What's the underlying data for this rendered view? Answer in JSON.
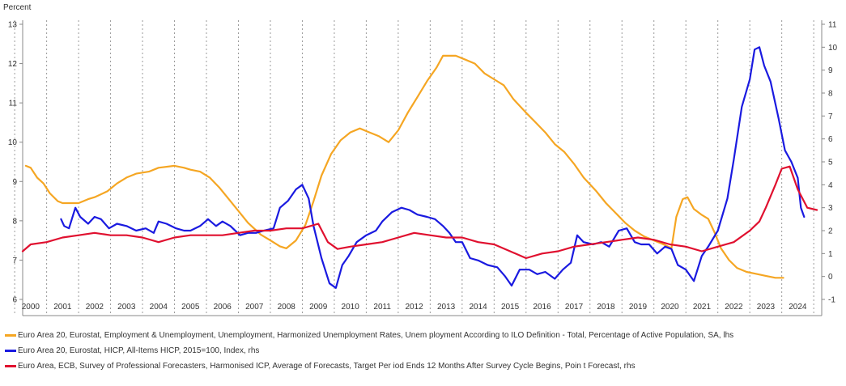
{
  "chart_data": {
    "type": "line",
    "y_left_title": "Percent",
    "y_left_range": [
      6,
      13
    ],
    "y_left_ticks": [
      "6",
      "7",
      "8",
      "9",
      "10",
      "11",
      "12",
      "13"
    ],
    "y_right_range": [
      -1,
      11
    ],
    "y_right_ticks": [
      "-1",
      "0",
      "1",
      "2",
      "3",
      "4",
      "5",
      "6",
      "7",
      "8",
      "9",
      "10",
      "11"
    ],
    "x_range": [
      1999.75,
      2024.75
    ],
    "x_tick_labels": [
      "2000",
      "2001",
      "2002",
      "2003",
      "2004",
      "2005",
      "2006",
      "2007",
      "2008",
      "2009",
      "2010",
      "2011",
      "2012",
      "2013",
      "2014",
      "2015",
      "2016",
      "2017",
      "2018",
      "2019",
      "2020",
      "2021",
      "2022",
      "2023",
      "2024"
    ],
    "grid": "vertical dotted",
    "legend_position": "bottom",
    "series": [
      {
        "name": "Euro Area 20, Eurostat, Employment & Unemployment, Unemployment, Harmonized Unemployment Rates, Unem   ployment According to ILO  Definition - Total, Percentage of Active Population, SA, lhs",
        "axis": "left",
        "color": "#F5A623",
        "points": [
          [
            1999.85,
            9.4
          ],
          [
            2000.0,
            9.35
          ],
          [
            2000.2,
            9.1
          ],
          [
            2000.4,
            8.95
          ],
          [
            2000.6,
            8.7
          ],
          [
            2000.85,
            8.5
          ],
          [
            2001.0,
            8.45
          ],
          [
            2001.5,
            8.45
          ],
          [
            2001.8,
            8.55
          ],
          [
            2002.0,
            8.6
          ],
          [
            2002.4,
            8.75
          ],
          [
            2002.7,
            8.95
          ],
          [
            2003.0,
            9.1
          ],
          [
            2003.3,
            9.2
          ],
          [
            2003.7,
            9.25
          ],
          [
            2004.0,
            9.35
          ],
          [
            2004.5,
            9.4
          ],
          [
            2004.8,
            9.35
          ],
          [
            2005.0,
            9.3
          ],
          [
            2005.3,
            9.25
          ],
          [
            2005.6,
            9.1
          ],
          [
            2005.9,
            8.85
          ],
          [
            2006.2,
            8.55
          ],
          [
            2006.5,
            8.25
          ],
          [
            2006.8,
            7.95
          ],
          [
            2007.2,
            7.65
          ],
          [
            2007.5,
            7.5
          ],
          [
            2007.8,
            7.35
          ],
          [
            2008.0,
            7.3
          ],
          [
            2008.3,
            7.5
          ],
          [
            2008.6,
            7.9
          ],
          [
            2008.85,
            8.5
          ],
          [
            2009.1,
            9.15
          ],
          [
            2009.4,
            9.7
          ],
          [
            2009.7,
            10.05
          ],
          [
            2010.0,
            10.25
          ],
          [
            2010.3,
            10.35
          ],
          [
            2010.6,
            10.25
          ],
          [
            2010.9,
            10.15
          ],
          [
            2011.2,
            10.0
          ],
          [
            2011.5,
            10.3
          ],
          [
            2011.8,
            10.75
          ],
          [
            2012.1,
            11.15
          ],
          [
            2012.4,
            11.55
          ],
          [
            2012.7,
            11.9
          ],
          [
            2012.9,
            12.2
          ],
          [
            2013.3,
            12.2
          ],
          [
            2013.6,
            12.1
          ],
          [
            2013.9,
            12.0
          ],
          [
            2014.2,
            11.75
          ],
          [
            2014.5,
            11.6
          ],
          [
            2014.8,
            11.45
          ],
          [
            2015.1,
            11.1
          ],
          [
            2015.5,
            10.75
          ],
          [
            2015.8,
            10.5
          ],
          [
            2016.1,
            10.25
          ],
          [
            2016.4,
            9.95
          ],
          [
            2016.7,
            9.75
          ],
          [
            2017.0,
            9.45
          ],
          [
            2017.3,
            9.1
          ],
          [
            2017.7,
            8.75
          ],
          [
            2018.0,
            8.45
          ],
          [
            2018.3,
            8.2
          ],
          [
            2018.6,
            7.95
          ],
          [
            2018.9,
            7.75
          ],
          [
            2019.2,
            7.6
          ],
          [
            2019.5,
            7.5
          ],
          [
            2019.8,
            7.4
          ],
          [
            2020.05,
            7.3
          ],
          [
            2020.2,
            8.1
          ],
          [
            2020.4,
            8.55
          ],
          [
            2020.55,
            8.6
          ],
          [
            2020.75,
            8.3
          ],
          [
            2021.0,
            8.15
          ],
          [
            2021.2,
            8.05
          ],
          [
            2021.4,
            7.7
          ],
          [
            2021.6,
            7.3
          ],
          [
            2021.85,
            7.0
          ],
          [
            2022.1,
            6.8
          ],
          [
            2022.4,
            6.7
          ],
          [
            2022.7,
            6.65
          ],
          [
            2023.0,
            6.6
          ],
          [
            2023.3,
            6.55
          ],
          [
            2023.55,
            6.55
          ]
        ]
      },
      {
        "name": "Euro Area 20, Eurostat, HICP, All-Items HICP, 2015=100, Index, rhs",
        "axis": "right",
        "color": "#1A1AE0",
        "points": [
          [
            2000.95,
            2.5
          ],
          [
            2001.05,
            2.2
          ],
          [
            2001.2,
            2.1
          ],
          [
            2001.4,
            3.0
          ],
          [
            2001.55,
            2.6
          ],
          [
            2001.8,
            2.3
          ],
          [
            2002.0,
            2.6
          ],
          [
            2002.2,
            2.5
          ],
          [
            2002.45,
            2.1
          ],
          [
            2002.7,
            2.3
          ],
          [
            2003.0,
            2.2
          ],
          [
            2003.3,
            2.0
          ],
          [
            2003.6,
            2.1
          ],
          [
            2003.85,
            1.9
          ],
          [
            2004.0,
            2.4
          ],
          [
            2004.25,
            2.3
          ],
          [
            2004.55,
            2.1
          ],
          [
            2004.8,
            2.0
          ],
          [
            2005.0,
            2.0
          ],
          [
            2005.3,
            2.2
          ],
          [
            2005.55,
            2.5
          ],
          [
            2005.8,
            2.2
          ],
          [
            2006.0,
            2.4
          ],
          [
            2006.25,
            2.2
          ],
          [
            2006.55,
            1.8
          ],
          [
            2006.8,
            1.9
          ],
          [
            2007.05,
            1.9
          ],
          [
            2007.3,
            2.0
          ],
          [
            2007.6,
            2.1
          ],
          [
            2007.8,
            3.0
          ],
          [
            2008.05,
            3.3
          ],
          [
            2008.3,
            3.8
          ],
          [
            2008.5,
            4.0
          ],
          [
            2008.7,
            3.4
          ],
          [
            2008.85,
            2.2
          ],
          [
            2009.1,
            0.8
          ],
          [
            2009.35,
            -0.3
          ],
          [
            2009.55,
            -0.5
          ],
          [
            2009.75,
            0.5
          ],
          [
            2009.95,
            0.9
          ],
          [
            2010.2,
            1.5
          ],
          [
            2010.5,
            1.8
          ],
          [
            2010.8,
            2.0
          ],
          [
            2011.0,
            2.4
          ],
          [
            2011.3,
            2.8
          ],
          [
            2011.6,
            3.0
          ],
          [
            2011.85,
            2.9
          ],
          [
            2012.1,
            2.7
          ],
          [
            2012.4,
            2.6
          ],
          [
            2012.65,
            2.5
          ],
          [
            2012.9,
            2.2
          ],
          [
            2013.1,
            1.9
          ],
          [
            2013.3,
            1.5
          ],
          [
            2013.5,
            1.5
          ],
          [
            2013.75,
            0.8
          ],
          [
            2014.0,
            0.7
          ],
          [
            2014.3,
            0.5
          ],
          [
            2014.6,
            0.4
          ],
          [
            2014.85,
            0.0
          ],
          [
            2015.05,
            -0.4
          ],
          [
            2015.3,
            0.3
          ],
          [
            2015.6,
            0.3
          ],
          [
            2015.85,
            0.1
          ],
          [
            2016.1,
            0.2
          ],
          [
            2016.4,
            -0.1
          ],
          [
            2016.65,
            0.3
          ],
          [
            2016.9,
            0.6
          ],
          [
            2017.1,
            1.8
          ],
          [
            2017.3,
            1.5
          ],
          [
            2017.6,
            1.4
          ],
          [
            2017.85,
            1.5
          ],
          [
            2018.1,
            1.3
          ],
          [
            2018.4,
            2.0
          ],
          [
            2018.65,
            2.1
          ],
          [
            2018.9,
            1.5
          ],
          [
            2019.1,
            1.4
          ],
          [
            2019.35,
            1.4
          ],
          [
            2019.6,
            1.0
          ],
          [
            2019.85,
            1.3
          ],
          [
            2020.05,
            1.2
          ],
          [
            2020.25,
            0.5
          ],
          [
            2020.5,
            0.3
          ],
          [
            2020.75,
            -0.2
          ],
          [
            2021.0,
            0.9
          ],
          [
            2021.2,
            1.3
          ],
          [
            2021.5,
            2.0
          ],
          [
            2021.8,
            3.4
          ],
          [
            2022.0,
            5.1
          ],
          [
            2022.25,
            7.4
          ],
          [
            2022.5,
            8.6
          ],
          [
            2022.65,
            9.9
          ],
          [
            2022.8,
            10.0
          ],
          [
            2022.95,
            9.2
          ],
          [
            2023.15,
            8.5
          ],
          [
            2023.4,
            6.9
          ],
          [
            2023.6,
            5.5
          ],
          [
            2023.8,
            5.0
          ],
          [
            2024.0,
            4.3
          ],
          [
            2024.1,
            3.0
          ],
          [
            2024.2,
            2.6
          ]
        ]
      },
      {
        "name": "Euro Area, ECB, Survey of Professional Forecasters, Harmonised ICP, Average of Forecasts, Target Per    iod Ends 12 Months After Survey Cycle Begins, Poin t Forecast, rhs",
        "axis": "right",
        "color": "#E0102F",
        "points": [
          [
            1999.75,
            1.1
          ],
          [
            2000.0,
            1.4
          ],
          [
            2000.5,
            1.5
          ],
          [
            2001.0,
            1.7
          ],
          [
            2001.5,
            1.8
          ],
          [
            2002.0,
            1.9
          ],
          [
            2002.5,
            1.8
          ],
          [
            2003.0,
            1.8
          ],
          [
            2003.5,
            1.7
          ],
          [
            2004.0,
            1.5
          ],
          [
            2004.5,
            1.7
          ],
          [
            2005.0,
            1.8
          ],
          [
            2005.5,
            1.8
          ],
          [
            2006.0,
            1.8
          ],
          [
            2006.5,
            1.9
          ],
          [
            2007.0,
            2.0
          ],
          [
            2007.5,
            2.0
          ],
          [
            2008.0,
            2.1
          ],
          [
            2008.5,
            2.1
          ],
          [
            2009.0,
            2.3
          ],
          [
            2009.3,
            1.5
          ],
          [
            2009.6,
            1.2
          ],
          [
            2010.0,
            1.3
          ],
          [
            2010.5,
            1.4
          ],
          [
            2011.0,
            1.5
          ],
          [
            2011.5,
            1.7
          ],
          [
            2012.0,
            1.9
          ],
          [
            2012.5,
            1.8
          ],
          [
            2013.0,
            1.7
          ],
          [
            2013.5,
            1.7
          ],
          [
            2014.0,
            1.5
          ],
          [
            2014.5,
            1.4
          ],
          [
            2015.0,
            1.1
          ],
          [
            2015.5,
            0.8
          ],
          [
            2016.0,
            1.0
          ],
          [
            2016.5,
            1.1
          ],
          [
            2017.0,
            1.3
          ],
          [
            2017.5,
            1.4
          ],
          [
            2018.0,
            1.5
          ],
          [
            2018.5,
            1.6
          ],
          [
            2019.0,
            1.7
          ],
          [
            2019.5,
            1.6
          ],
          [
            2020.0,
            1.4
          ],
          [
            2020.5,
            1.3
          ],
          [
            2021.0,
            1.1
          ],
          [
            2021.5,
            1.3
          ],
          [
            2022.0,
            1.5
          ],
          [
            2022.5,
            2.0
          ],
          [
            2022.8,
            2.4
          ],
          [
            2023.0,
            3.0
          ],
          [
            2023.3,
            4.0
          ],
          [
            2023.5,
            4.7
          ],
          [
            2023.75,
            4.8
          ],
          [
            2024.0,
            3.8
          ],
          [
            2024.3,
            3.0
          ],
          [
            2024.6,
            2.9
          ]
        ]
      }
    ]
  },
  "legend": [
    {
      "label": "Euro Area 20, Eurostat, Employment & Unemployment, Unemployment, Harmonized Unemployment Rates, Unem   ployment According to ILO  Definition - Total, Percentage of Active Population, SA, lhs",
      "color": "#F5A623"
    },
    {
      "label": "Euro Area 20, Eurostat, HICP, All-Items HICP, 2015=100, Index, rhs",
      "color": "#1A1AE0"
    },
    {
      "label": "Euro Area, ECB, Survey of Professional Forecasters, Harmonised ICP, Average of Forecasts, Target Per    iod Ends 12 Months After Survey Cycle Begins, Poin t Forecast, rhs",
      "color": "#E0102F"
    }
  ]
}
